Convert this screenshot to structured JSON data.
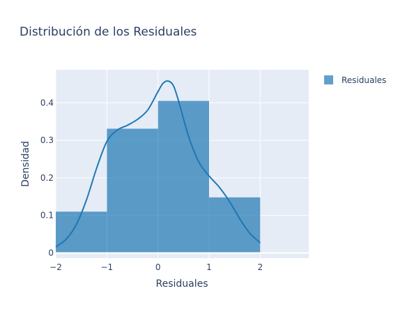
{
  "chart_data": {
    "type": "bar",
    "title": "Distribución de los Residuales",
    "xlabel": "Residuales",
    "ylabel": "Densidad",
    "xlim": [
      -2.0,
      2.95
    ],
    "ylim": [
      -0.014,
      0.488
    ],
    "grid": true,
    "legend_position": "top-right",
    "series": [
      {
        "name": "Residuales",
        "kind": "histogram",
        "color": "#1f77b4",
        "bins": [
          {
            "x0": -2.0,
            "x1": -1.0,
            "value": 0.11
          },
          {
            "x0": -1.0,
            "x1": 0.0,
            "value": 0.331
          },
          {
            "x0": 0.0,
            "x1": 1.0,
            "value": 0.405
          },
          {
            "x0": 1.0,
            "x1": 2.0,
            "value": 0.148
          },
          {
            "x0": 2.0,
            "x1": 3.0,
            "value": 0.001
          }
        ]
      },
      {
        "kind": "density",
        "color": "#1f77b4",
        "x": [
          -2.0,
          -1.8,
          -1.6,
          -1.4,
          -1.2,
          -1.0,
          -0.8,
          -0.6,
          -0.4,
          -0.2,
          0.0,
          0.1,
          0.2,
          0.3,
          0.4,
          0.6,
          0.8,
          1.0,
          1.2,
          1.4,
          1.6,
          1.8,
          2.0
        ],
        "y": [
          0.016,
          0.036,
          0.075,
          0.141,
          0.226,
          0.297,
          0.327,
          0.34,
          0.356,
          0.381,
          0.43,
          0.452,
          0.458,
          0.446,
          0.406,
          0.31,
          0.242,
          0.205,
          0.175,
          0.137,
          0.091,
          0.052,
          0.027
        ]
      }
    ],
    "x_ticks": [
      -2,
      -1,
      0,
      1,
      2
    ],
    "x_tick_labels": [
      "−2",
      "−1",
      "0",
      "1",
      "2"
    ],
    "y_ticks": [
      0,
      0.1,
      0.2,
      0.3,
      0.4
    ],
    "y_tick_labels": [
      "0",
      "0.1",
      "0.2",
      "0.3",
      "0.4"
    ],
    "colors": {
      "plot_background": "#e5ecf6",
      "grid": "#ffffff",
      "text": "#2a3f5f",
      "bar": "#1f77b4"
    }
  }
}
